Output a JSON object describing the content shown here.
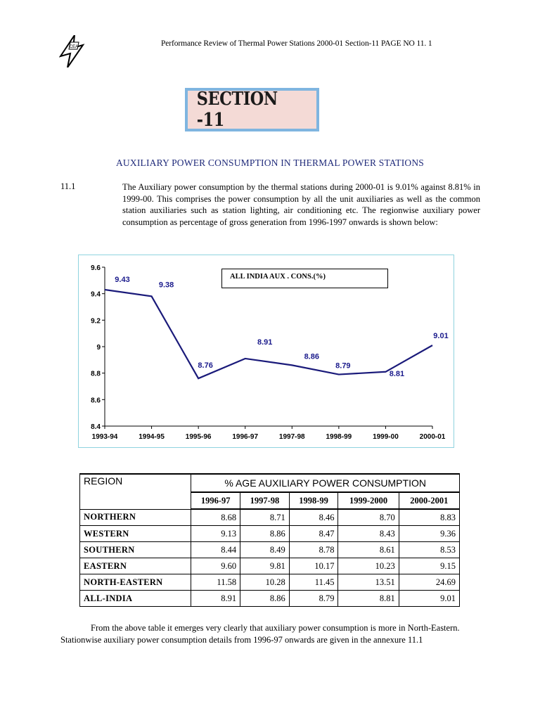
{
  "header": {
    "running_title": "Performance Review of Thermal Power Stations  2000-01  Section-11   PAGE  NO 11. 1"
  },
  "logo": {
    "text": "CEA",
    "icon": "lightning-bolt-logo-icon"
  },
  "section": {
    "title": "SECTION -11"
  },
  "subtitle": "AUXILIARY POWER CONSUMPTION IN THERMAL POWER STATIONS",
  "paragraph": {
    "number": "11.1",
    "text": "The Auxiliary power consumption by the thermal stations during 2000-01 is 9.01% against 8.81% in 1999-00. This comprises  the power consumption by all the unit auxiliaries as well as the common station auxiliaries such as station lighting, air conditioning etc.  The regionwise auxiliary power consumption as percentage of gross generation from 1996-1997 onwards is shown below:"
  },
  "chart_data": {
    "type": "line",
    "title": "",
    "legend": "ALL  INDIA AUX . CONS.(%)",
    "legend_position": "top-center",
    "categories": [
      "1993-94",
      "1994-95",
      "1995-96",
      "1996-97",
      "1997-98",
      "1998-99",
      "1999-00",
      "2000-01"
    ],
    "series": [
      {
        "name": "ALL  INDIA AUX . CONS.(%)",
        "values": [
          9.43,
          9.38,
          8.76,
          8.91,
          8.86,
          8.79,
          8.81,
          9.01
        ]
      }
    ],
    "data_labels": [
      "9.43",
      "9.38",
      "8.76",
      "8.91",
      "8.86",
      "8.79",
      "8.81",
      "9.01"
    ],
    "y_ticks": [
      "9.6",
      "9.4",
      "9.2",
      "9",
      "8.8",
      "8.6",
      "8.4"
    ],
    "ylim": [
      8.4,
      9.6
    ],
    "grid": false,
    "line_color": "#1a1a7a",
    "label_color": "#1a1a8c",
    "frame_color": "#8fd3df"
  },
  "table": {
    "region_header": "REGION",
    "group_header": "% AGE AUXILIARY POWER CONSUMPTION",
    "years": [
      "1996-97",
      "1997-98",
      "1998-99",
      "1999-2000",
      "2000-2001"
    ],
    "rows": [
      {
        "region": "NORTHERN",
        "values": [
          "8.68",
          "8.71",
          "8.46",
          "8.70",
          "8.83"
        ]
      },
      {
        "region": "WESTERN",
        "values": [
          "9.13",
          "8.86",
          "8.47",
          "8.43",
          "9.36"
        ]
      },
      {
        "region": "SOUTHERN",
        "values": [
          "8.44",
          "8.49",
          "8.78",
          "8.61",
          "8.53"
        ]
      },
      {
        "region": "EASTERN",
        "values": [
          "9.60",
          "9.81",
          "10.17",
          "10.23",
          "9.15"
        ]
      },
      {
        "region": "NORTH-EASTERN",
        "values": [
          "11.58",
          "10.28",
          "11.45",
          "13.51",
          "24.69"
        ]
      },
      {
        "region": "ALL-INDIA",
        "values": [
          "8.91",
          "8.86",
          "8.79",
          "8.81",
          "9.01"
        ]
      }
    ]
  },
  "footer": {
    "text": "From the above table it emerges very clearly that auxiliary power consumption is more in North-Eastern.  Stationwise auxiliary power consumption details from 1996-97 onwards are given in the annexure 11.1"
  }
}
